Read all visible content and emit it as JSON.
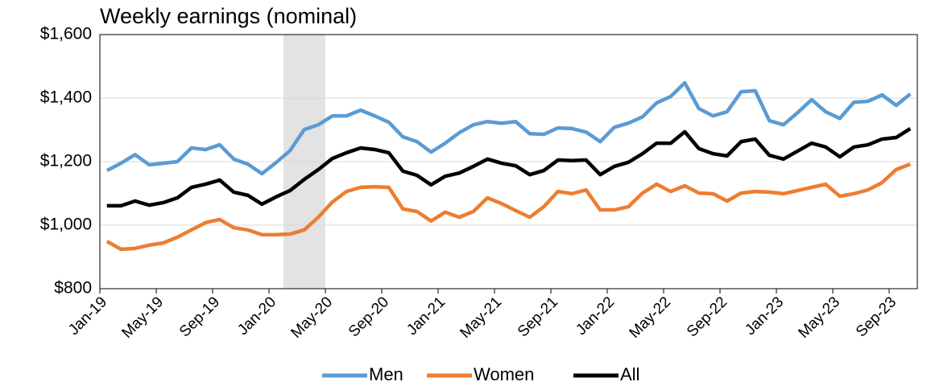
{
  "chart_data": {
    "type": "line",
    "title": "Weekly earnings (nominal)",
    "categories": [
      "Jan-19",
      null,
      null,
      null,
      "May-19",
      null,
      null,
      null,
      "Sep-19",
      null,
      null,
      null,
      "Jan-20",
      null,
      null,
      null,
      "May-20",
      null,
      null,
      null,
      "Sep-20",
      null,
      null,
      null,
      "Jan-21",
      null,
      null,
      null,
      "May-21",
      null,
      null,
      null,
      "Sep-21",
      null,
      null,
      null,
      "Jan-22",
      null,
      null,
      null,
      "May-22",
      null,
      null,
      null,
      "Sep-22",
      null,
      null,
      null,
      "Jan-23",
      null,
      null,
      null,
      "May-23",
      null,
      null,
      null,
      "Sep-23",
      null
    ],
    "series": [
      {
        "name": "Men",
        "color": "#5b9bd5",
        "values": [
          1172,
          1195,
          1222,
          1190,
          1195,
          1200,
          1243,
          1238,
          1253,
          1208,
          1192,
          1162,
          1197,
          1235,
          1301,
          1316,
          1344,
          1344,
          1362,
          1344,
          1324,
          1278,
          1263,
          1230,
          1258,
          1291,
          1316,
          1326,
          1321,
          1326,
          1288,
          1286,
          1306,
          1304,
          1293,
          1263,
          1308,
          1321,
          1341,
          1385,
          1405,
          1448,
          1367,
          1344,
          1357,
          1420,
          1423,
          1329,
          1316,
          1354,
          1395,
          1357,
          1336,
          1387,
          1390,
          1410,
          1377,
          1413
        ]
      },
      {
        "name": "Women",
        "color": "#ed7d31",
        "values": [
          949,
          924,
          927,
          937,
          944,
          962,
          985,
          1008,
          1018,
          992,
          985,
          970,
          970,
          972,
          985,
          1025,
          1073,
          1106,
          1119,
          1121,
          1119,
          1051,
          1043,
          1013,
          1041,
          1025,
          1043,
          1086,
          1068,
          1046,
          1025,
          1058,
          1106,
          1099,
          1111,
          1048,
          1048,
          1058,
          1101,
          1129,
          1106,
          1124,
          1101,
          1099,
          1076,
          1101,
          1106,
          1104,
          1099,
          1109,
          1119,
          1129,
          1091,
          1099,
          1111,
          1134,
          1175,
          1192
        ]
      },
      {
        "name": "All",
        "color": "#000000",
        "values": [
          1061,
          1061,
          1076,
          1063,
          1071,
          1086,
          1119,
          1129,
          1142,
          1104,
          1094,
          1066,
          1089,
          1109,
          1144,
          1175,
          1210,
          1228,
          1243,
          1238,
          1228,
          1170,
          1157,
          1127,
          1154,
          1164,
          1185,
          1208,
          1195,
          1187,
          1159,
          1172,
          1205,
          1203,
          1205,
          1159,
          1185,
          1198,
          1225,
          1258,
          1258,
          1294,
          1241,
          1225,
          1218,
          1263,
          1271,
          1220,
          1208,
          1233,
          1258,
          1246,
          1215,
          1246,
          1253,
          1271,
          1276,
          1304
        ]
      }
    ],
    "ylim": [
      800,
      1600
    ],
    "yticks": [
      {
        "value": 800,
        "label": "$800"
      },
      {
        "value": 1000,
        "label": "$1,000"
      },
      {
        "value": 1200,
        "label": "$1,200"
      },
      {
        "value": 1400,
        "label": "$1,400"
      },
      {
        "value": 1600,
        "label": "$1,600"
      }
    ],
    "grid": true,
    "legend": "bottom"
  }
}
